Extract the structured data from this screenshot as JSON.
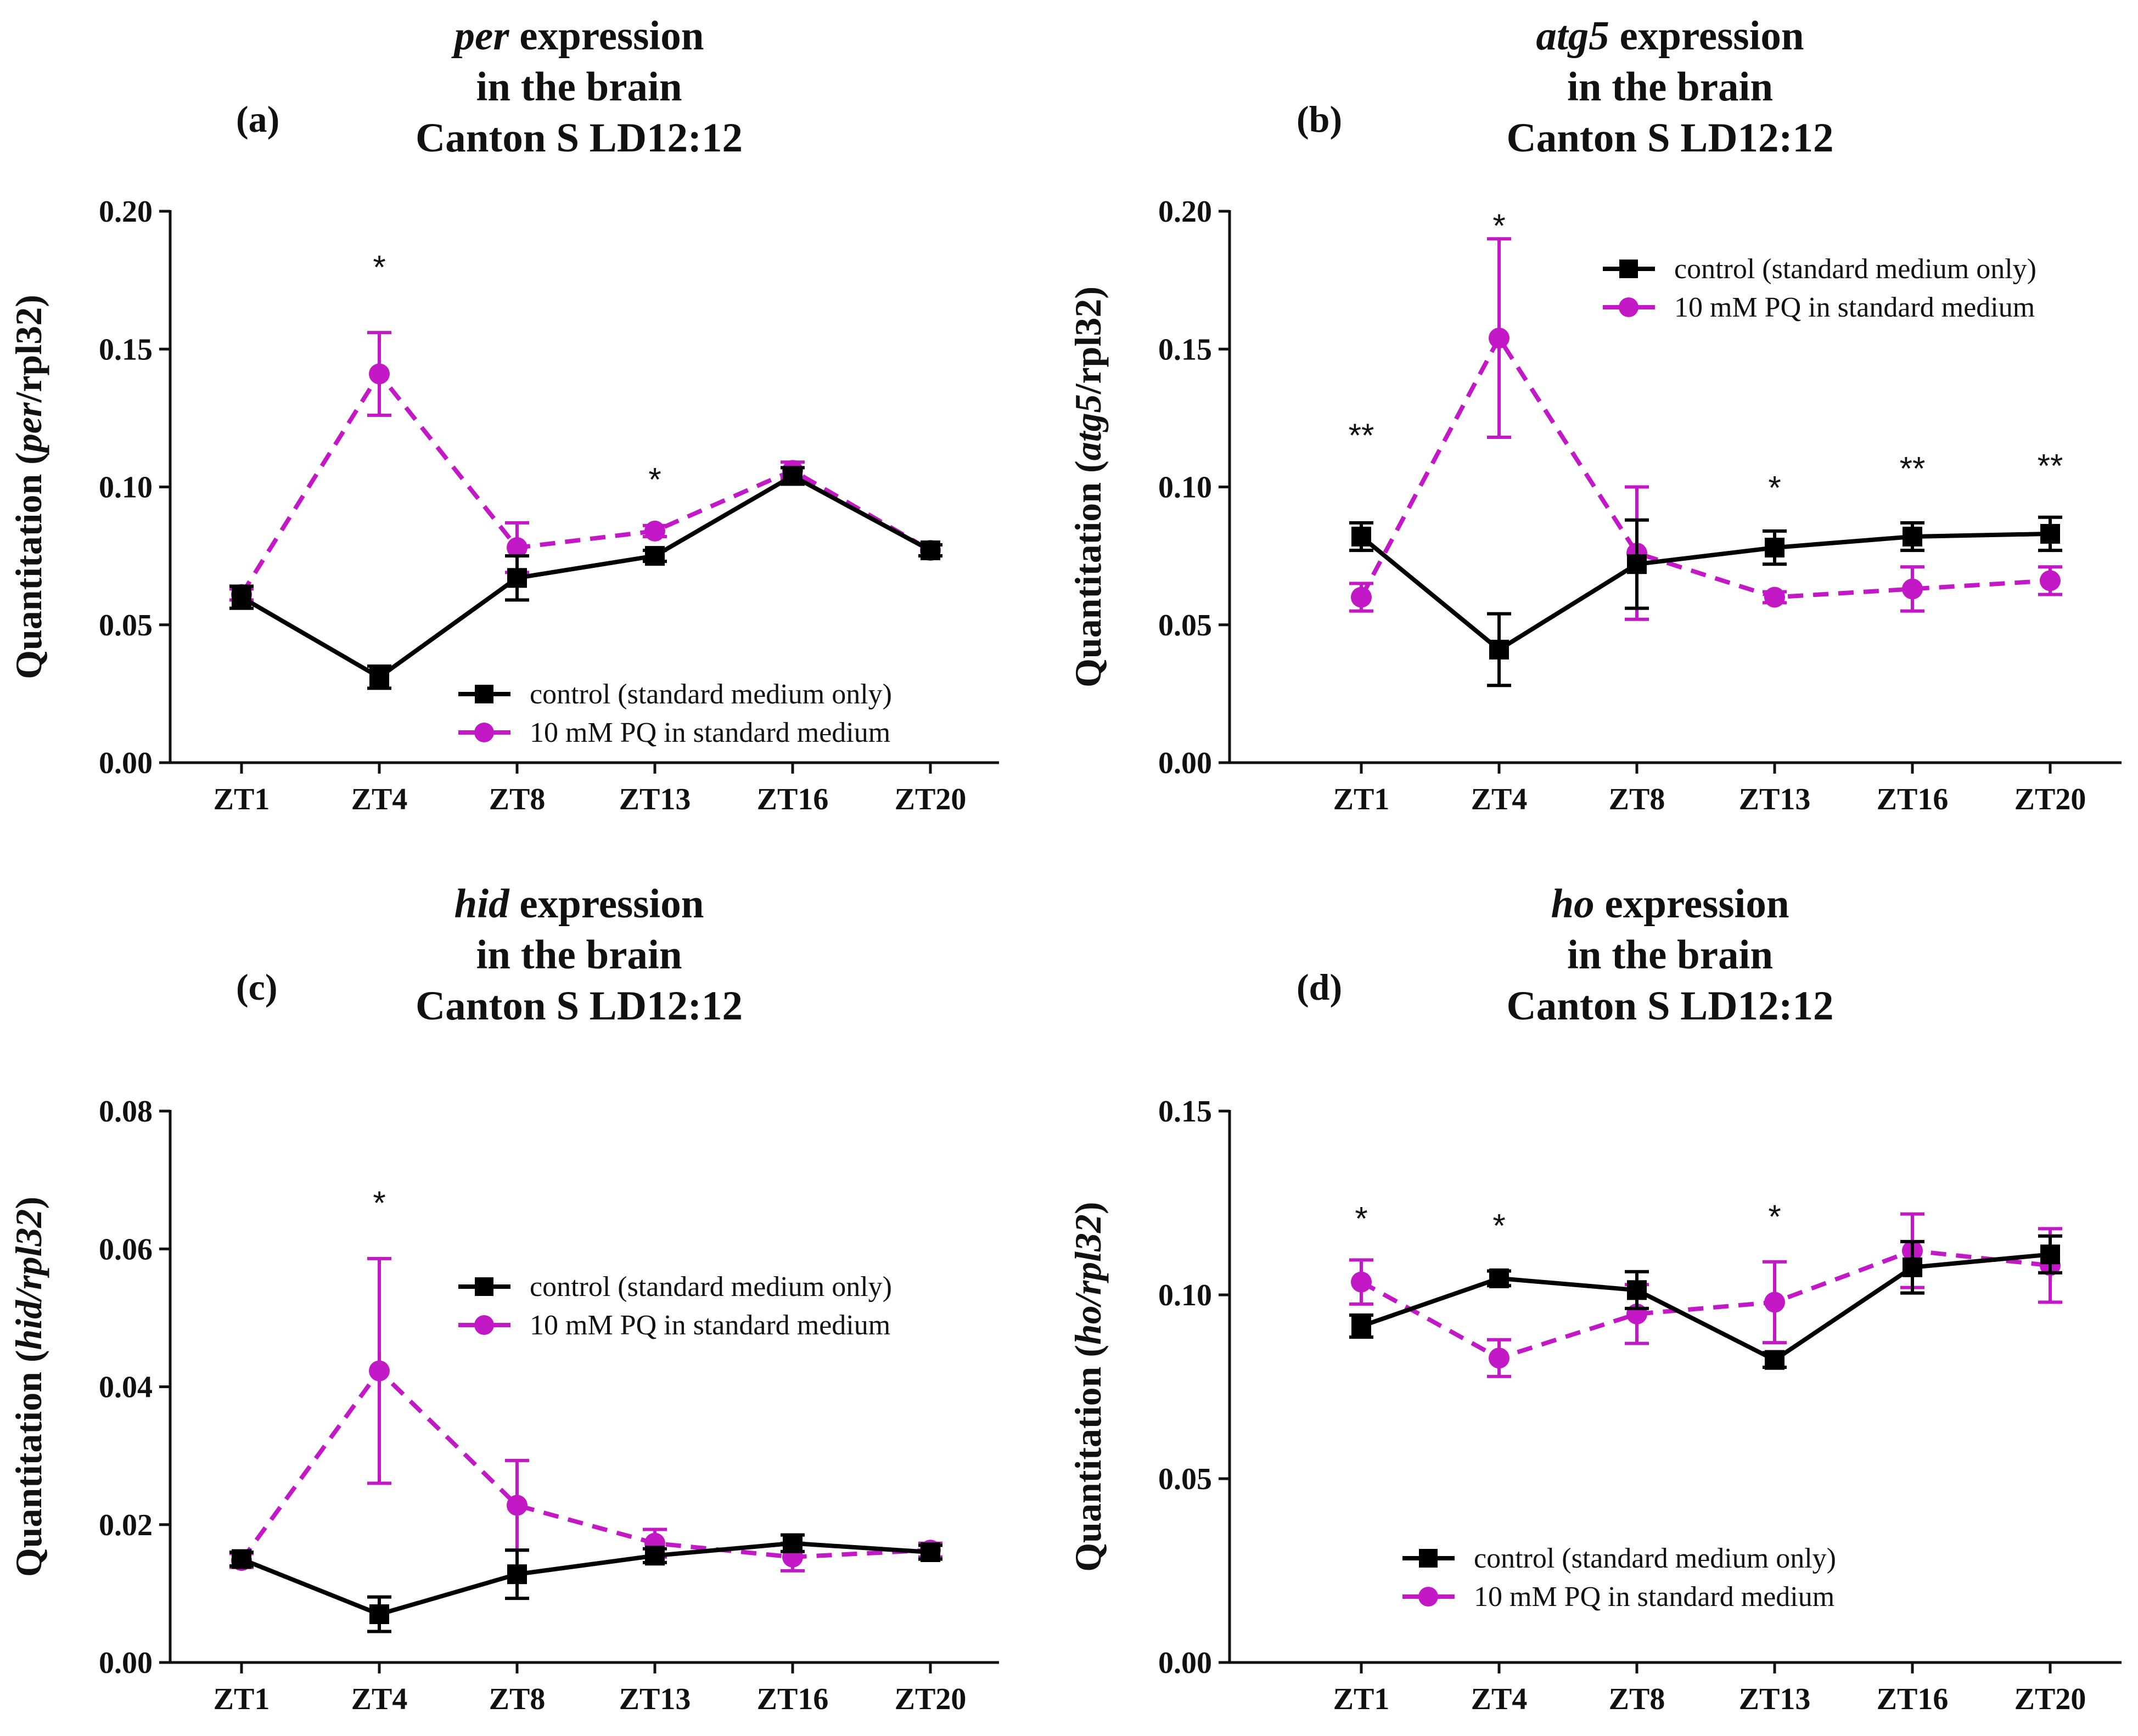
{
  "figure": {
    "series_names": [
      "control (standard medium only)",
      "10 mM PQ in standard medium"
    ],
    "colors": {
      "control": "#000000",
      "pq": "#c218c6"
    }
  },
  "chart_data": [
    {
      "type": "line",
      "panel_label": "(a)",
      "title_gene": "per",
      "title_rest": " expression",
      "title_line2": "in the brain",
      "title_line3": "Canton S LD12:12",
      "ylabel_prefix": "Quantitation (",
      "ylabel_gene": "per",
      "ylabel_suffix": "/rpl32)",
      "categories": [
        "ZT1",
        "ZT4",
        "ZT8",
        "ZT13",
        "ZT16",
        "ZT20"
      ],
      "ylim": [
        0,
        0.2
      ],
      "yticks": [
        "0.00",
        "0.05",
        "0.10",
        "0.15",
        "0.20"
      ],
      "legend_position": "bottom-right",
      "series": [
        {
          "name": "control (standard medium only)",
          "values": [
            0.06,
            0.031,
            0.067,
            0.075,
            0.104,
            0.077
          ],
          "err": [
            0.004,
            0.004,
            0.008,
            0.002,
            0.003,
            0.002
          ]
        },
        {
          "name": "10 mM PQ in standard medium",
          "values": [
            0.061,
            0.141,
            0.078,
            0.084,
            0.106,
            0.077
          ],
          "err": [
            0.002,
            0.015,
            0.009,
            0.002,
            0.003,
            0.002
          ]
        }
      ],
      "annotations": [
        {
          "category": "ZT4",
          "text": "*",
          "y": 0.18
        },
        {
          "category": "ZT13",
          "text": "*",
          "y": 0.103
        }
      ]
    },
    {
      "type": "line",
      "panel_label": "(b)",
      "title_gene": "atg5",
      "title_rest": " expression",
      "title_line2": "in the brain",
      "title_line3": "Canton S LD12:12",
      "ylabel_prefix": "Quantitation (",
      "ylabel_gene": "atg5",
      "ylabel_suffix": "/rpl32)",
      "categories": [
        "ZT1",
        "ZT4",
        "ZT8",
        "ZT13",
        "ZT16",
        "ZT20"
      ],
      "ylim": [
        0,
        0.2
      ],
      "yticks": [
        "0.00",
        "0.05",
        "0.10",
        "0.15",
        "0.20"
      ],
      "legend_position": "top-right",
      "series": [
        {
          "name": "control (standard medium only)",
          "values": [
            0.082,
            0.041,
            0.072,
            0.078,
            0.082,
            0.083
          ],
          "err": [
            0.005,
            0.013,
            0.016,
            0.006,
            0.005,
            0.006
          ]
        },
        {
          "name": "10 mM PQ in standard medium",
          "values": [
            0.06,
            0.154,
            0.076,
            0.06,
            0.063,
            0.066
          ],
          "err": [
            0.005,
            0.036,
            0.024,
            0.002,
            0.008,
            0.005
          ]
        }
      ],
      "annotations": [
        {
          "category": "ZT1",
          "text": "**",
          "y": 0.119
        },
        {
          "category": "ZT4",
          "text": "*",
          "y": 0.195
        },
        {
          "category": "ZT13",
          "text": "*",
          "y": 0.1
        },
        {
          "category": "ZT16",
          "text": "**",
          "y": 0.107
        },
        {
          "category": "ZT20",
          "text": "**",
          "y": 0.108
        }
      ]
    },
    {
      "type": "line",
      "panel_label": "(c)",
      "title_gene": "hid",
      "title_rest": " expression",
      "title_line2": "in the brain",
      "title_line3": "Canton S LD12:12",
      "ylabel_prefix": "Quantitation (",
      "ylabel_gene": "hid/rpl32",
      "ylabel_suffix": ")",
      "categories": [
        "ZT1",
        "ZT4",
        "ZT8",
        "ZT13",
        "ZT16",
        "ZT20"
      ],
      "ylim": [
        0,
        0.08
      ],
      "yticks": [
        "0.00",
        "0.02",
        "0.04",
        "0.06",
        "0.08"
      ],
      "legend_position": "top-right",
      "series": [
        {
          "name": "control (standard medium only)",
          "values": [
            0.015,
            0.007,
            0.0128,
            0.0155,
            0.0173,
            0.016
          ],
          "err": [
            0.001,
            0.0025,
            0.0035,
            0.001,
            0.0012,
            0.001
          ]
        },
        {
          "name": "10 mM PQ in standard medium",
          "values": [
            0.0148,
            0.0423,
            0.0228,
            0.0173,
            0.0153,
            0.0163
          ],
          "err": [
            0.001,
            0.0163,
            0.0065,
            0.002,
            0.002,
            0.001
          ]
        }
      ],
      "annotations": [
        {
          "category": "ZT4",
          "text": "*",
          "y": 0.0668
        }
      ]
    },
    {
      "type": "line",
      "panel_label": "(d)",
      "title_gene": "ho",
      "title_rest": " expression",
      "title_line2": "in the brain",
      "title_line3": "Canton S LD12:12",
      "ylabel_prefix": "Quantitation (",
      "ylabel_gene": "ho/rpl32",
      "ylabel_suffix": ")",
      "categories": [
        "ZT1",
        "ZT4",
        "ZT8",
        "ZT13",
        "ZT16",
        "ZT20"
      ],
      "ylim": [
        0,
        0.15
      ],
      "yticks": [
        "0.00",
        "0.05",
        "0.10",
        "0.15"
      ],
      "legend_position": "bottom-right",
      "series": [
        {
          "name": "control (standard medium only)",
          "values": [
            0.0915,
            0.1045,
            0.1013,
            0.0823,
            0.1075,
            0.111
          ],
          "err": [
            0.003,
            0.002,
            0.005,
            0.002,
            0.007,
            0.005
          ]
        },
        {
          "name": "10 mM PQ in standard medium",
          "values": [
            0.1035,
            0.0828,
            0.0948,
            0.098,
            0.112,
            0.108
          ],
          "err": [
            0.006,
            0.005,
            0.008,
            0.011,
            0.01,
            0.01
          ]
        }
      ],
      "annotations": [
        {
          "category": "ZT1",
          "text": "*",
          "y": 0.121
        },
        {
          "category": "ZT4",
          "text": "*",
          "y": 0.119
        },
        {
          "category": "ZT13",
          "text": "*",
          "y": 0.1215
        }
      ]
    }
  ]
}
